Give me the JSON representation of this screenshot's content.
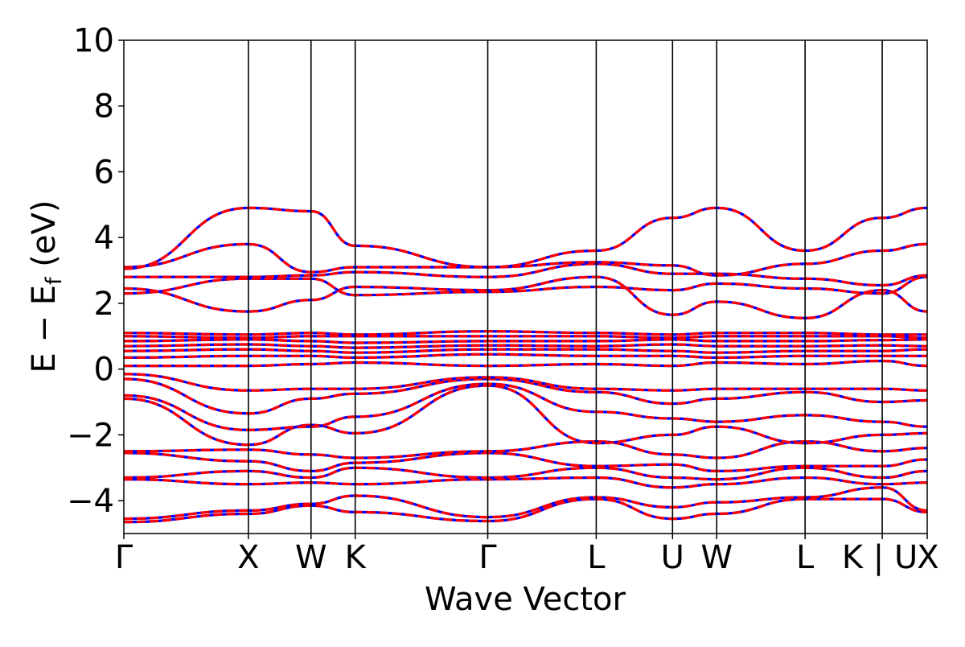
{
  "chart_data": {
    "type": "line",
    "title": "",
    "xlabel": "Wave Vector",
    "ylabel": {
      "main": "E − E",
      "sub": "f",
      "unit": " (eV)"
    },
    "ylim": [
      -5,
      10
    ],
    "yticks": [
      -4,
      -2,
      0,
      2,
      4,
      6,
      8,
      10
    ],
    "ytick_labels": [
      "−4",
      "−2",
      "0",
      "2",
      "4",
      "6",
      "8",
      "10"
    ],
    "grid": false,
    "legend": "none",
    "x_path_length": 1.0,
    "kpoints": [
      {
        "label": "Γ",
        "x": 0.0
      },
      {
        "label": "X",
        "x": 0.155
      },
      {
        "label": "W",
        "x": 0.233
      },
      {
        "label": "K",
        "x": 0.288
      },
      {
        "label": "Γ",
        "x": 0.453
      },
      {
        "label": "L",
        "x": 0.588
      },
      {
        "label": "U",
        "x": 0.683
      },
      {
        "label": "W",
        "x": 0.738
      },
      {
        "label": "L",
        "x": 0.848
      },
      {
        "label": "K | U",
        "x": 0.944
      },
      {
        "label": "X",
        "x": 1.0
      }
    ],
    "series_style": {
      "primary_color": "#0000ff",
      "overlay_color": "#ff0000",
      "overlay_dash": "dashed"
    },
    "bands": [
      {
        "y": [
          -4.65,
          -4.4,
          -4.15,
          -4.35,
          -4.62,
          -3.95,
          -4.55,
          -4.4,
          -3.95,
          -3.95,
          -4.35
        ]
      },
      {
        "y": [
          -4.55,
          -4.3,
          -4.1,
          -3.85,
          -4.5,
          -3.9,
          -4.2,
          -4.05,
          -3.9,
          -3.6,
          -4.3
        ]
      },
      {
        "y": [
          -3.35,
          -3.5,
          -3.45,
          -3.5,
          -3.35,
          -3.3,
          -3.6,
          -3.5,
          -3.3,
          -3.5,
          -3.45
        ]
      },
      {
        "y": [
          -3.3,
          -3.1,
          -3.3,
          -3.0,
          -3.3,
          -3.0,
          -3.3,
          -3.35,
          -3.0,
          -3.3,
          -3.1
        ]
      },
      {
        "y": [
          -2.55,
          -2.8,
          -3.1,
          -2.85,
          -2.55,
          -2.95,
          -2.9,
          -3.1,
          -2.95,
          -2.95,
          -2.75
        ]
      },
      {
        "y": [
          -2.5,
          -2.45,
          -2.6,
          -2.7,
          -2.5,
          -2.2,
          -2.6,
          -2.7,
          -2.2,
          -2.5,
          -2.4
        ]
      },
      {
        "y": [
          -0.9,
          -2.3,
          -1.7,
          -1.95,
          -0.5,
          -2.25,
          -2.0,
          -1.75,
          -2.25,
          -2.0,
          -1.95
        ]
      },
      {
        "y": [
          -0.8,
          -1.85,
          -1.75,
          -1.45,
          -0.45,
          -1.3,
          -1.5,
          -1.6,
          -1.4,
          -1.6,
          -1.75
        ]
      },
      {
        "y": [
          -0.3,
          -1.35,
          -0.9,
          -0.75,
          -0.3,
          -0.7,
          -1.05,
          -0.9,
          -0.7,
          -1.0,
          -0.95
        ]
      },
      {
        "y": [
          -0.15,
          -0.65,
          -0.6,
          -0.6,
          -0.25,
          -0.6,
          -0.65,
          -0.6,
          -0.6,
          -0.6,
          -0.65
        ]
      },
      {
        "y": [
          0.1,
          0.1,
          0.15,
          0.2,
          0.1,
          0.15,
          0.1,
          0.2,
          0.15,
          0.25,
          0.1
        ]
      },
      {
        "y": [
          0.35,
          0.4,
          0.4,
          0.35,
          0.45,
          0.4,
          0.4,
          0.35,
          0.4,
          0.4,
          0.4
        ]
      },
      {
        "y": [
          0.55,
          0.6,
          0.55,
          0.5,
          0.6,
          0.6,
          0.55,
          0.5,
          0.55,
          0.55,
          0.6
        ]
      },
      {
        "y": [
          0.7,
          0.75,
          0.7,
          0.65,
          0.72,
          0.7,
          0.75,
          0.7,
          0.7,
          0.72,
          0.7
        ]
      },
      {
        "y": [
          0.85,
          0.9,
          0.85,
          0.8,
          0.85,
          0.85,
          0.9,
          0.85,
          0.85,
          0.88,
          0.9
        ]
      },
      {
        "y": [
          1.0,
          0.95,
          1.0,
          1.0,
          1.0,
          1.0,
          0.95,
          1.0,
          1.0,
          1.0,
          0.95
        ]
      },
      {
        "y": [
          1.1,
          1.05,
          1.1,
          1.05,
          1.15,
          1.1,
          1.05,
          1.1,
          1.1,
          1.05,
          1.05
        ]
      },
      {
        "y": [
          2.45,
          1.75,
          2.1,
          2.5,
          2.4,
          2.8,
          1.65,
          2.05,
          1.55,
          2.4,
          1.75
        ]
      },
      {
        "y": [
          2.3,
          2.75,
          2.75,
          2.25,
          2.35,
          2.5,
          2.4,
          2.6,
          2.45,
          2.3,
          2.8
        ]
      },
      {
        "y": [
          2.8,
          2.8,
          2.85,
          2.95,
          2.8,
          3.2,
          2.9,
          2.9,
          2.75,
          2.55,
          2.85
        ]
      },
      {
        "y": [
          3.1,
          3.8,
          2.95,
          3.1,
          3.1,
          3.25,
          3.15,
          2.85,
          3.2,
          3.6,
          3.8
        ]
      },
      {
        "y": [
          3.05,
          4.9,
          4.8,
          3.75,
          3.1,
          3.6,
          4.6,
          4.9,
          3.6,
          4.6,
          4.9
        ]
      }
    ]
  }
}
